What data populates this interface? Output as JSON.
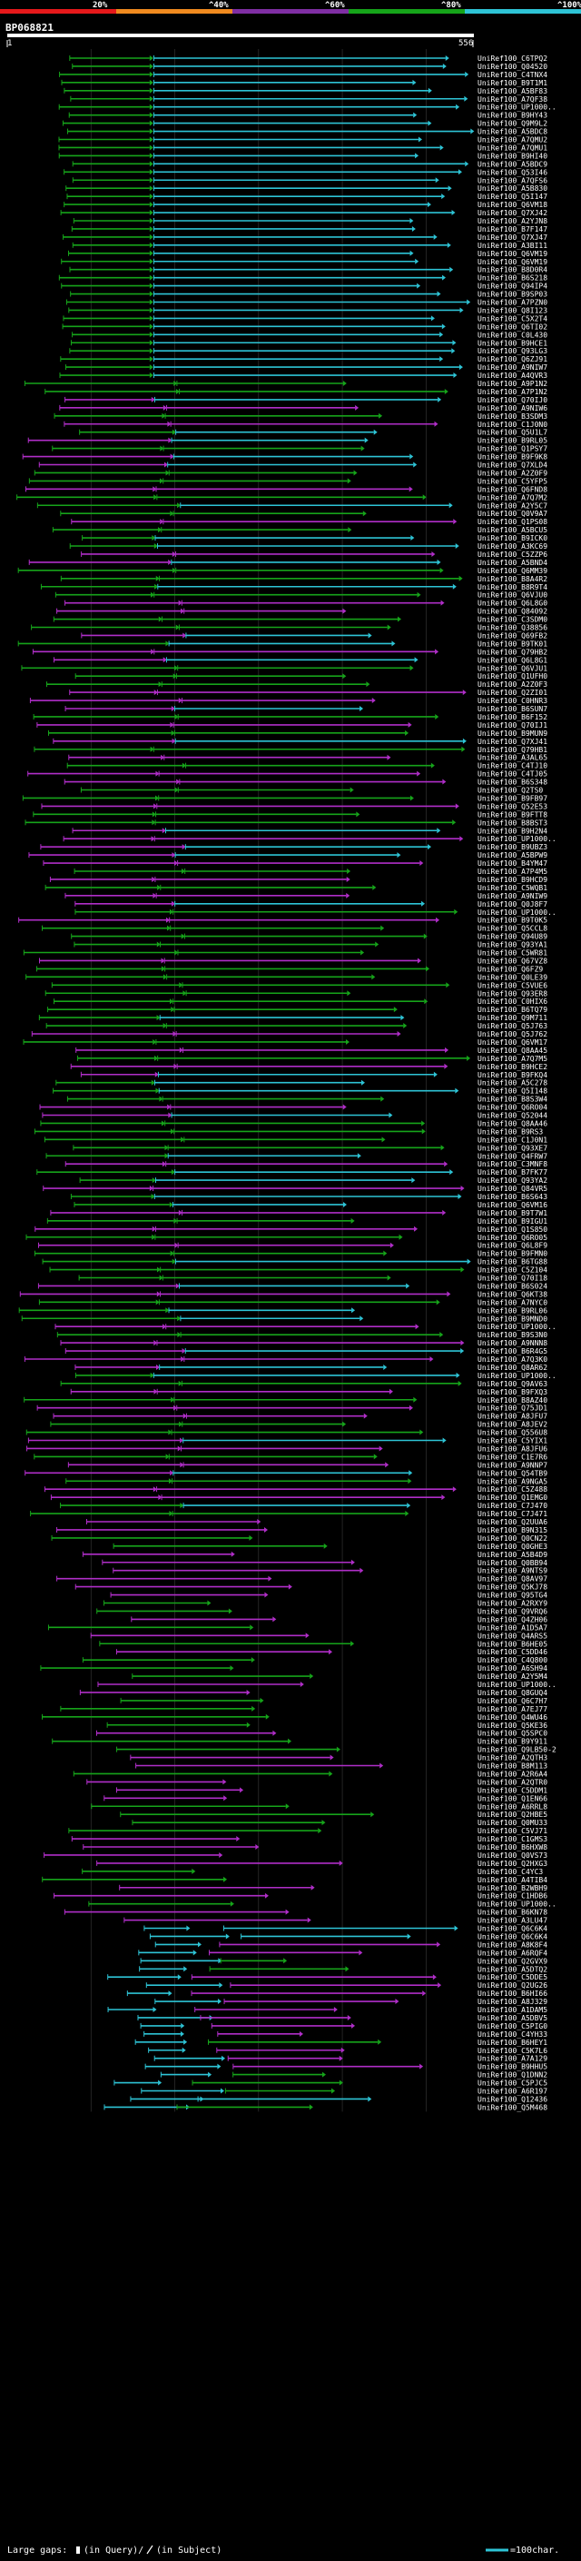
{
  "chart_data": {
    "type": "alignment-graphic",
    "query_id": "BP068821",
    "query_start": "1",
    "query_end": "556",
    "query_length": 556,
    "identity_legend": [
      {
        "label": "",
        "color": "#e6191b"
      },
      {
        "label": "20%",
        "color": "#e6191b"
      },
      {
        "label": "",
        "color": "#f08a1f"
      },
      {
        "label": "^40%",
        "color": "#f08a1f"
      },
      {
        "label": "",
        "color": "#7f2ea3"
      },
      {
        "label": "^60%",
        "color": "#7f2ea3"
      },
      {
        "label": "",
        "color": "#16a41a"
      },
      {
        "label": "^80%",
        "color": "#16a41a"
      },
      {
        "label": "",
        "color": "#2ec4d6"
      },
      {
        "label": "^100%",
        "color": "#2ec4d6"
      }
    ],
    "hit_ids": [
      "UniRef100_C6TPQ2",
      "UniRef100_Q04520",
      "UniRef100_C4TNX4",
      "UniRef100_B9T1M1",
      "UniRef100_A5BF83",
      "UniRef100_A7QF38",
      "UniRef100_UP1000..",
      "UniRef100_B9HY43",
      "UniRef100_Q9M9L2",
      "UniRef100_A5BDC8",
      "UniRef100_A7QMU2",
      "UniRef100_A7QMU1",
      "UniRef100_B9HI40",
      "UniRef100_A5BDC9",
      "UniRef100_Q53I46",
      "UniRef100_A7QFS6",
      "UniRef100_A5B830",
      "UniRef100_Q5I147",
      "UniRef100_Q6VM18",
      "UniRef100_Q7XJ42",
      "UniRef100_A2YJN8",
      "UniRef100_B7F147",
      "UniRef100_Q7XJ47",
      "UniRef100_A3BI11",
      "UniRef100_Q6VM19",
      "UniRef100_Q6VM19",
      "UniRef100_B8D0R4",
      "UniRef100_B6S218",
      "UniRef100_Q94IP4",
      "UniRef100_B9SP03",
      "UniRef100_A7PZN0",
      "UniRef100_Q8I123",
      "UniRef100_C5X2T4",
      "UniRef100_Q6TI02",
      "UniRef100_C0L430",
      "UniRef100_B9HCE1",
      "UniRef100_Q93LG3",
      "UniRef100_Q6ZJ91",
      "UniRef100_A9NIW7",
      "UniRef100_A4QVR3",
      "UniRef100_A9P1N2",
      "UniRef100_A7P1N2",
      "UniRef100_Q70IJ0",
      "UniRef100_A9NIW6",
      "UniRef100_B3SDM3",
      "UniRef100_C1J0N0",
      "UniRef100_Q5U1L7",
      "UniRef100_B9RL05",
      "UniRef100_Q1PSY7",
      "UniRef100_B9F9K8",
      "UniRef100_Q7XLD4",
      "UniRef100_A2Z0F9",
      "UniRef100_C5YFP5",
      "UniRef100_Q6FND8",
      "UniRef100_A7Q7M2",
      "UniRef100_A2Y5C7",
      "UniRef100_Q0V9A7",
      "UniRef100_Q1PS08",
      "UniRef100_A5BCU5",
      "UniRef100_B9ICK0",
      "UniRef100_A3KC69",
      "UniRef100_C5ZZP6",
      "UniRef100_A5BND4",
      "UniRef100_Q6MM39",
      "UniRef100_B8A4R2",
      "UniRef100_B8R9T4",
      "UniRef100_Q6VJU0",
      "UniRef100_Q6L8G0",
      "UniRef100_Q84092",
      "UniRef100_C3SDM0",
      "UniRef100_Q38856",
      "UniRef100_Q69FB2",
      "UniRef100_B9TK01",
      "UniRef100_Q79HB2",
      "UniRef100_Q6L8G1",
      "UniRef100_Q6VJU1",
      "UniRef100_Q1UFH0",
      "UniRef100_A2Z0F3",
      "UniRef100_Q2ZI01",
      "UniRef100_C0HNR3",
      "UniRef100_B6SUN7",
      "UniRef100_B6F152",
      "UniRef100_Q70IJ1",
      "UniRef100_B9MUN9",
      "UniRef100_Q7XJ41",
      "UniRef100_Q79HB1",
      "UniRef100_A3AL65",
      "UniRef100_C4TJ10",
      "UniRef100_C4TJ05",
      "UniRef100_B6S348",
      "UniRef100_Q2TS0",
      "UniRef100_B9FB97",
      "UniRef100_Q52E53",
      "UniRef100_B9FTT8",
      "UniRef100_B8BST3",
      "UniRef100_B9H2N4",
      "UniRef100_UP1000..",
      "UniRef100_B9UBZ3",
      "UniRef100_A5BPW9",
      "UniRef100_B4YM47",
      "UniRef100_A7P4M5",
      "UniRef100_B9HCD9",
      "UniRef100_C5WQB1",
      "UniRef100_A9NIW9",
      "UniRef100_Q0J8F7",
      "UniRef100_UP1000..",
      "UniRef100_B9T0K5",
      "UniRef100_Q5CCL8",
      "UniRef100_Q94U89",
      "UniRef100_Q93YA1",
      "UniRef100_C5WR81",
      "UniRef100_Q67VZ8",
      "UniRef100_Q6FZ9",
      "UniRef100_Q0LE39",
      "UniRef100_C5VUE6",
      "UniRef100_Q93ER8",
      "UniRef100_C0HIX6",
      "UniRef100_B6TQ79",
      "UniRef100_Q9M711",
      "UniRef100_Q5J763",
      "UniRef100_Q5J762",
      "UniRef100_Q6VM17",
      "UniRef100_Q8AA45",
      "UniRef100_A7Q7M5",
      "UniRef100_B9HCE2",
      "UniRef100_B9FKQ4",
      "UniRef100_A5C278",
      "UniRef100_Q5I148",
      "UniRef100_B8S3W4",
      "UniRef100_Q6RO04",
      "UniRef100_Q52044",
      "UniRef100_Q8AA46",
      "UniRef100_B9RS3",
      "UniRef100_C1J0N1",
      "UniRef100_Q93XE7",
      "UniRef100_Q4FRW7",
      "UniRef100_C3MNF8",
      "UniRef100_B7FK77",
      "UniRef100_Q93YA2",
      "UniRef100_Q84VR5",
      "UniRef100_B6S643",
      "UniRef100_Q6VM16",
      "UniRef100_B9T7W1",
      "UniRef100_B9IGU1",
      "UniRef100_Q1S850",
      "UniRef100_Q6RO05",
      "UniRef100_Q6L8F9",
      "UniRef100_B9FMN0",
      "UniRef100_B6TG88",
      "UniRef100_C5Z104",
      "UniRef100_Q70I18",
      "UniRef100_B6S024",
      "UniRef100_Q6KT38",
      "UniRef100_A7NYC0",
      "UniRef100_B9RL06",
      "UniRef100_B9MND0",
      "UniRef100_UP1000..",
      "UniRef100_B9S3N0",
      "UniRef100_A9NNN8",
      "UniRef100_B6R4G5",
      "UniRef100_A7Q3K0",
      "UniRef100_Q8AR62",
      "UniRef100_UP1000..",
      "UniRef100_Q9AV63",
      "UniRef100_B9FXQ3",
      "UniRef100_B8AZ40",
      "UniRef100_Q75JD1",
      "UniRef100_A8JFU7",
      "UniRef100_A8JEV2",
      "UniRef100_Q556U8",
      "UniRef100_C5YIX1",
      "UniRef100_A8JFU6",
      "UniRef100_C1E7R6",
      "UniRef100_A9NNP7",
      "UniRef100_Q54TB9",
      "UniRef100_A9NGA5",
      "UniRef100_C5Z488",
      "UniRef100_Q1EMG0",
      "UniRef100_C7J470",
      "UniRef100_C7J471",
      "UniRef100_Q2UUA6",
      "UniRef100_B9N315",
      "UniRef100_Q0CN22",
      "UniRef100_Q0GHE3",
      "UniRef100_A5B4D9",
      "UniRef100_Q0BB94",
      "UniRef100_A9NTS9",
      "UniRef100_Q8AV97",
      "UniRef100_Q5KJ78",
      "UniRef100_Q95TG4",
      "UniRef100_A2RXY9",
      "UniRef100_Q9VRQ6",
      "UniRef100_Q4ZH06",
      "UniRef100_A1D5A7",
      "UniRef100_Q4ARS5",
      "UniRef100_B6HE05",
      "UniRef100_C5DD46",
      "UniRef100_C4Q800",
      "UniRef100_A6SH94",
      "UniRef100_A2Y5M4",
      "UniRef100_UP1000..",
      "UniRef100_Q8GUQ4",
      "UniRef100_Q6C7H7",
      "UniRef100_A7EJ77",
      "UniRef100_Q4WU46",
      "UniRef100_Q5KE36",
      "UniRef100_Q5SPC0",
      "UniRef100_B9Y911",
      "UniRef100_Q9LB50-2",
      "UniRef100_A2QTH3",
      "UniRef100_B8M113",
      "UniRef100_A2R6A4",
      "UniRef100_A2QTR0",
      "UniRef100_C5DDM1",
      "UniRef100_Q1EN66",
      "UniRef100_A6RRL8",
      "UniRef100_Q2HBE5",
      "UniRef100_Q0MU33",
      "UniRef100_C5VJ71",
      "UniRef100_C1GMS3",
      "UniRef100_B6HXW8",
      "UniRef100_Q0VS73",
      "UniRef100_Q2HXG3",
      "UniRef100_C4YC3",
      "UniRef100_A4TIB4",
      "UniRef100_B2WBH9",
      "UniRef100_C1HDB6",
      "UniRef100_UP1000..",
      "UniRef100_B6KN78",
      "UniRef100_A3LU47",
      "UniRef100_Q6C6K4",
      "UniRef100_Q6C6K4",
      "UniRef100_A8K8F4",
      "UniRef100_A6RQF4",
      "UniRef100_Q2GVX9",
      "UniRef100_A5DTQ2",
      "UniRef100_C5DDE5",
      "UniRef100_Q2UG26",
      "UniRef100_B6HI66",
      "UniRef100_A8J329",
      "UniRef100_A1DAM5",
      "UniRef100_A5DBV5",
      "UniRef100_C5PIG0",
      "UniRef100_C4YH33",
      "UniRef100_B6HEY1",
      "UniRef100_C5K7L6",
      "UniRef100_A7A129",
      "UniRef100_B9HHU5",
      "UniRef100_Q1DNN2",
      "UniRef100_C5PJC5",
      "UniRef100_A6R197",
      "UniRef100_Q12436",
      "UniRef100_Q5M468"
    ],
    "footer": {
      "large_gaps_label": "Large gaps:",
      "in_query": "(in Query)/",
      "in_subject": "(in Subject)",
      "scale_label": "=100char."
    }
  }
}
